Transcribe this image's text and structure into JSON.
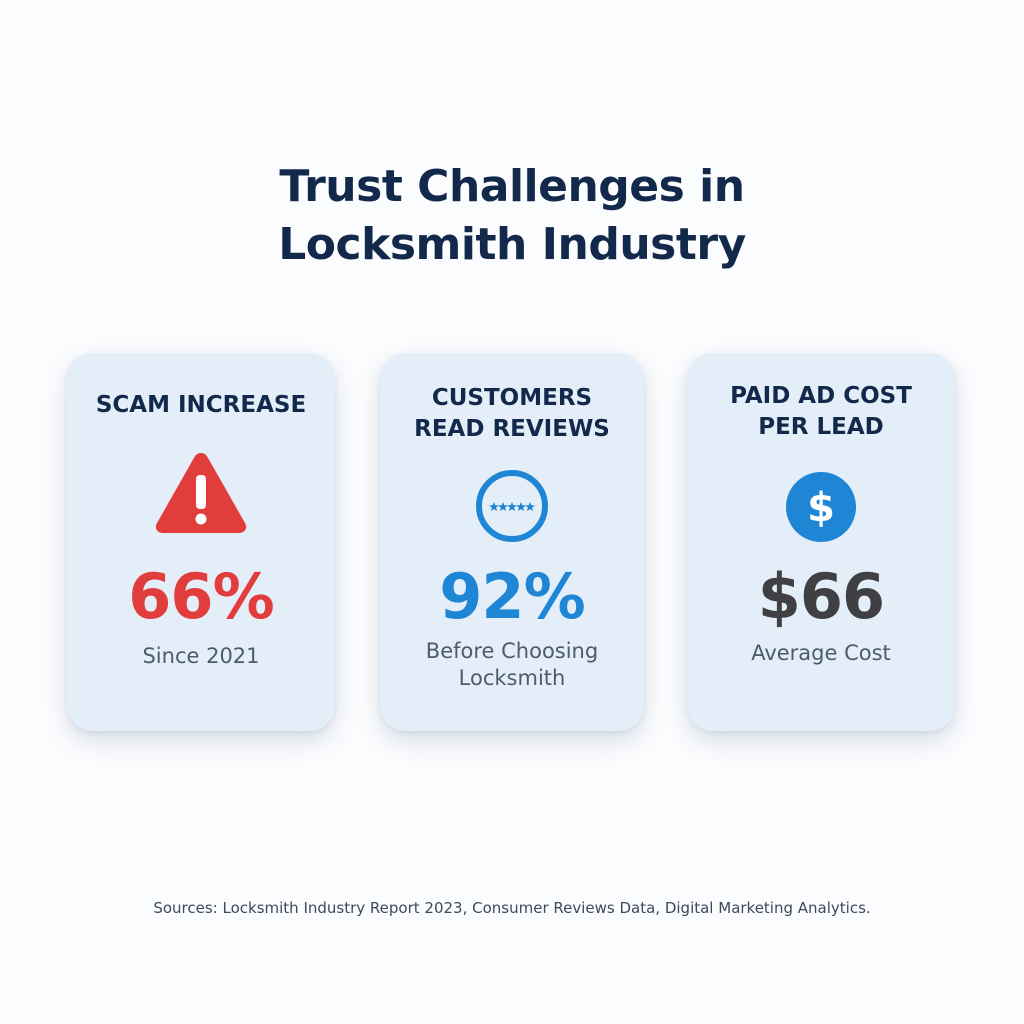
{
  "title": {
    "line1": "Trust Challenges in",
    "line2": "Locksmith Industry"
  },
  "cards": [
    {
      "label_lines": [
        "SCAM INCREASE"
      ],
      "icon": "warning-triangle-icon",
      "value": "66%",
      "value_color": "#e23d3d",
      "sub_lines": [
        "Since 2021"
      ]
    },
    {
      "label_lines": [
        "CUSTOMERS",
        "READ REVIEWS"
      ],
      "icon": "star-rating-icon",
      "value": "92%",
      "value_color": "#1f86d6",
      "sub_lines": [
        "Before Choosing",
        "Locksmith"
      ]
    },
    {
      "label_lines": [
        "PAID AD COST",
        "PER LEAD"
      ],
      "icon": "dollar-icon",
      "value": "$66",
      "value_color": "#3f3f44",
      "sub_lines": [
        "Average Cost"
      ]
    }
  ],
  "colors": {
    "title": "#13294b",
    "card_background": "#e4eef8",
    "warning_red": "#e23d3d",
    "review_blue": "#1f86d6",
    "dollar_blue": "#1f86d6",
    "value_dark": "#3f3f44"
  },
  "sources": "Sources: Locksmith Industry Report 2023, Consumer Reviews Data, Digital Marketing Analytics."
}
